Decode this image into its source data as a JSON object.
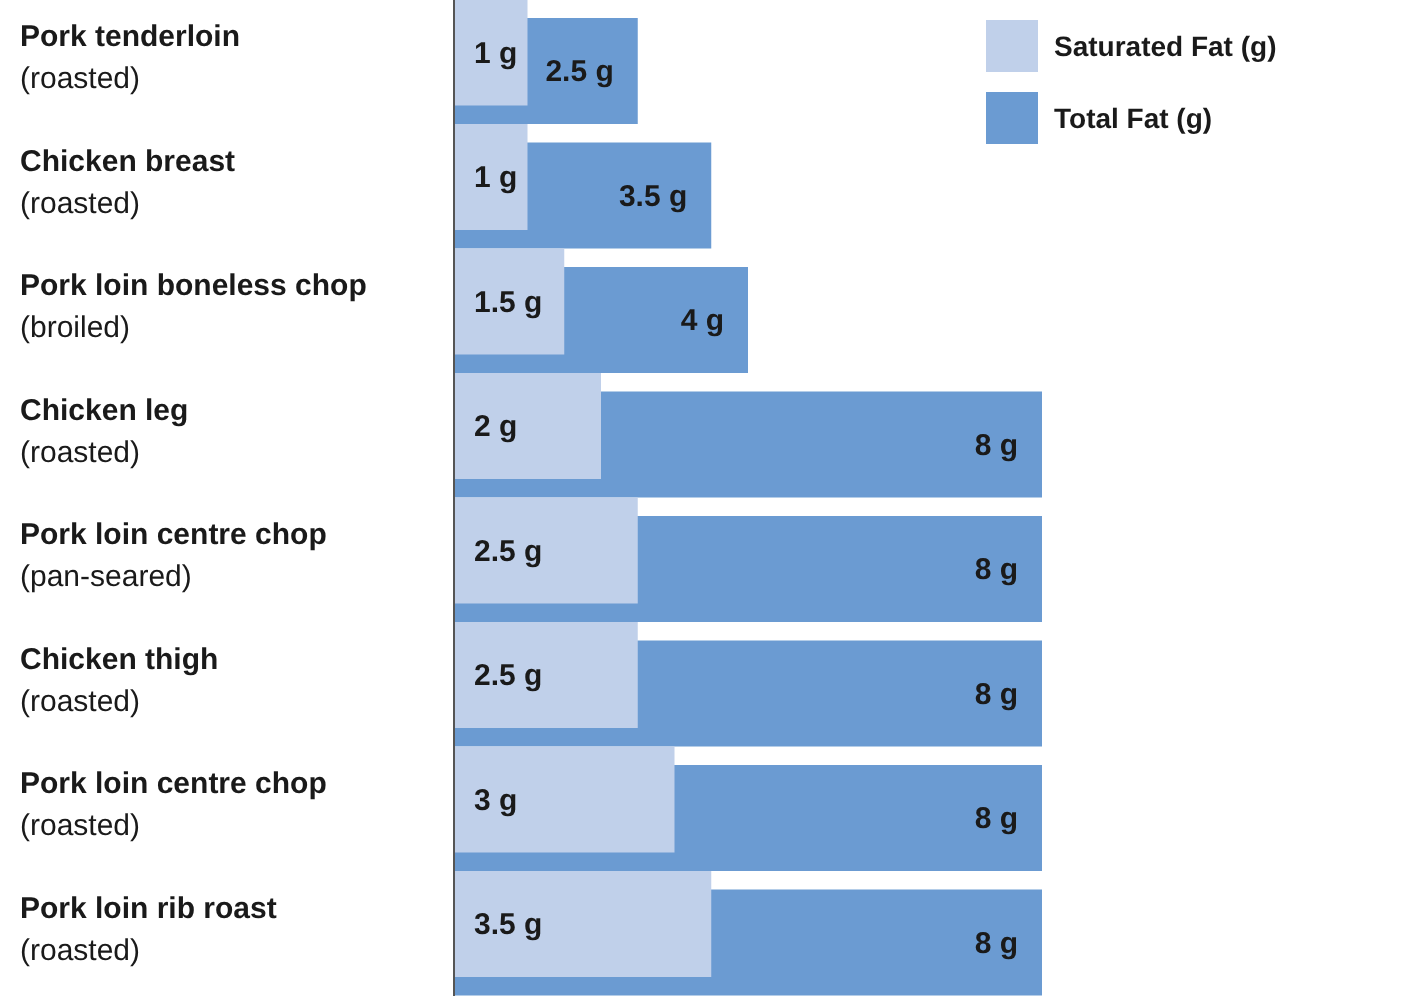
{
  "chart_data": {
    "type": "bar",
    "orientation": "horizontal",
    "legend": "top right",
    "categories": [
      "Pork tenderloin\n(roasted)",
      "Chicken breast\n(roasted)",
      "Pork loin boneless chop\n(broiled)",
      "Chicken leg\n(roasted)",
      "Pork loin centre chop\n(pan-seared)",
      "Chicken thigh\n(roasted)",
      "Pork loin centre chop\n(roasted)",
      "Pork loin rib roast\n(roasted)"
    ],
    "series": [
      {
        "name": "Saturated Fat (g)",
        "color": "#c0d0ea",
        "values": [
          1,
          1,
          1.5,
          2,
          2.5,
          2.5,
          3,
          3.5
        ],
        "value_labels": [
          "1 g",
          "1 g",
          "1.5 g",
          "2 g",
          "2.5 g",
          "2.5 g",
          "3 g",
          "3.5 g"
        ]
      },
      {
        "name": "Total Fat (g)",
        "color": "#6b9bd2",
        "values": [
          2.5,
          3.5,
          4,
          8,
          8,
          8,
          8,
          8
        ],
        "value_labels": [
          "2.5 g",
          "3.5 g",
          "4 g",
          "8 g",
          "8 g",
          "8 g",
          "8 g",
          "8 g"
        ]
      }
    ]
  }
}
